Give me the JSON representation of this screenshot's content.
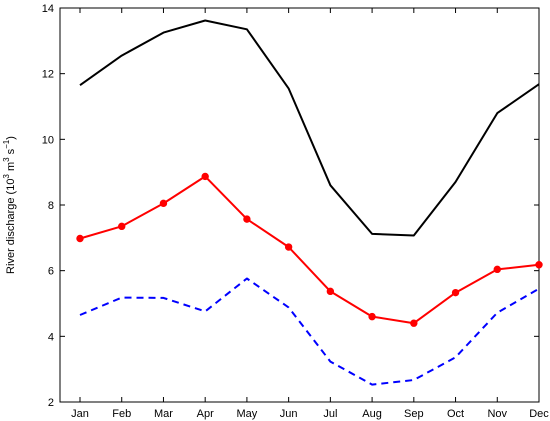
{
  "chart_data": {
    "type": "line",
    "categories": [
      "Jan",
      "Feb",
      "Mar",
      "Apr",
      "May",
      "Jun",
      "Jul",
      "Aug",
      "Sep",
      "Oct",
      "Nov",
      "Dec"
    ],
    "ylabel": {
      "prefix": "River discharge (10",
      "exp1": "3",
      "mid": " m",
      "exp2": "3",
      "mid2": " s",
      "exp3": "−1",
      "suffix": ")"
    },
    "ylim": [
      2,
      14
    ],
    "yticks": [
      2,
      4,
      6,
      8,
      10,
      12,
      14
    ],
    "grid": false,
    "series": [
      {
        "values": [
          11.65,
          12.55,
          13.25,
          13.62,
          13.35,
          11.55,
          8.6,
          7.12,
          7.07,
          8.7,
          10.8,
          11.68
        ],
        "color": "#000000",
        "style": "solid",
        "markers": false
      },
      {
        "values": [
          6.98,
          7.35,
          8.05,
          8.87,
          7.57,
          6.72,
          5.37,
          4.6,
          4.4,
          5.33,
          6.04,
          6.18
        ],
        "color": "#ff0000",
        "style": "solid",
        "markers": true
      },
      {
        "values": [
          4.65,
          5.18,
          5.17,
          4.76,
          5.76,
          4.88,
          3.23,
          2.53,
          2.67,
          3.36,
          4.72,
          5.45
        ],
        "color": "#0000ff",
        "style": "dashed",
        "markers": false
      }
    ]
  }
}
